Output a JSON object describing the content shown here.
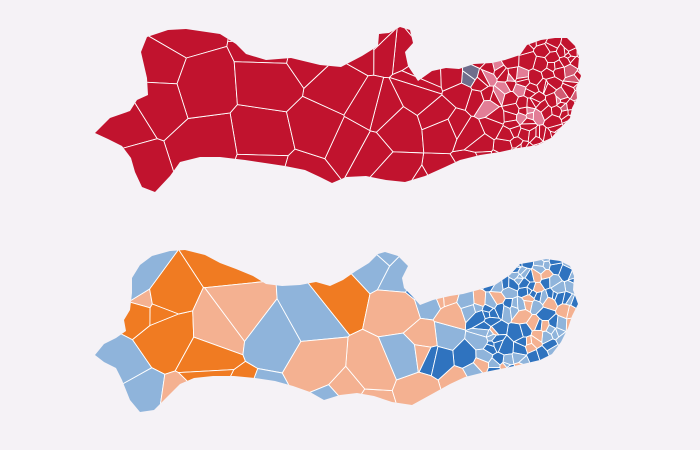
{
  "maps": [
    {
      "id": "top-map",
      "palette": [
        "#c1132e",
        "#c1132e",
        "#c1132e",
        "#c1132e",
        "#c1132e",
        "#c1132e",
        "#c1132e",
        "#e27d96",
        "#d25a72"
      ],
      "accent_highlight": "#6f6e8c"
    },
    {
      "id": "bottom-map",
      "palette": [
        "#f07b22",
        "#f4b191",
        "#8fb4db",
        "#2f73bf"
      ]
    }
  ],
  "background": "#f5f2f6",
  "border_color": "#ffffff"
}
